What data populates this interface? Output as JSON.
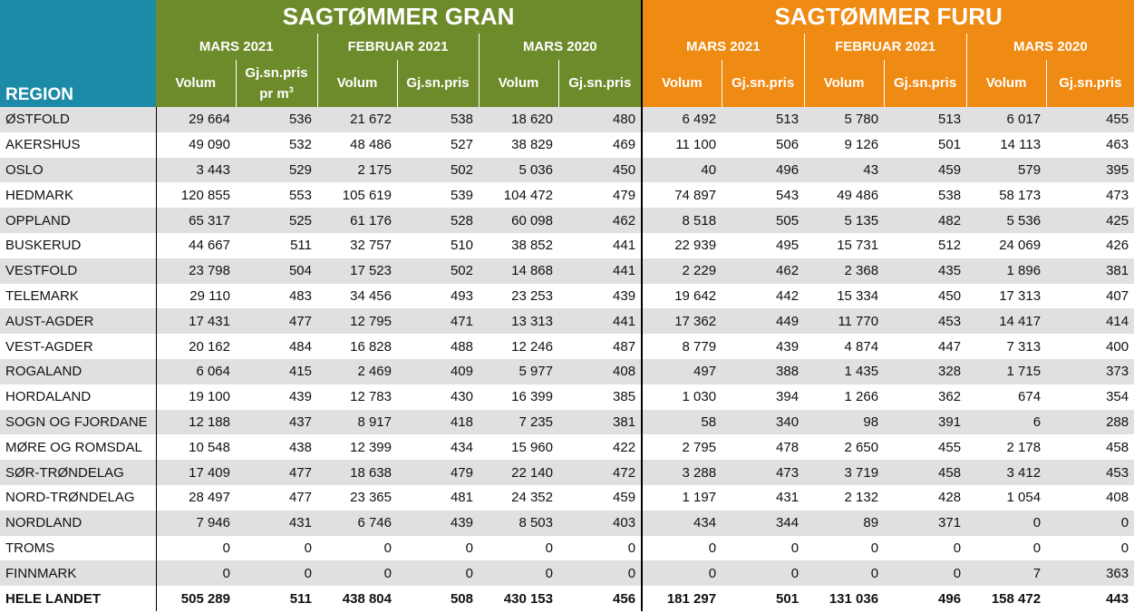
{
  "header": {
    "region_label": "REGION",
    "gran_title": "SAGTØMMER GRAN",
    "furu_title": "SAGTØMMER FURU",
    "periods": [
      "MARS 2021",
      "FEBRUAR 2021",
      "MARS 2020"
    ],
    "col_volum": "Volum",
    "col_pris": "Gj.sn.pris",
    "col_pris_first_line1": "Gj.sn.pris",
    "col_pris_first_line2": "pr m",
    "col_pris_first_sup": "3"
  },
  "rows": [
    {
      "region": "ØSTFOLD",
      "gran": [
        "29 664",
        "536",
        "21 672",
        "538",
        "18 620",
        "480"
      ],
      "furu": [
        "6 492",
        "513",
        "5 780",
        "513",
        "6 017",
        "455"
      ]
    },
    {
      "region": "AKERSHUS",
      "gran": [
        "49 090",
        "532",
        "48 486",
        "527",
        "38 829",
        "469"
      ],
      "furu": [
        "11 100",
        "506",
        "9 126",
        "501",
        "14 113",
        "463"
      ]
    },
    {
      "region": "OSLO",
      "gran": [
        "3 443",
        "529",
        "2 175",
        "502",
        "5 036",
        "450"
      ],
      "furu": [
        "40",
        "496",
        "43",
        "459",
        "579",
        "395"
      ]
    },
    {
      "region": "HEDMARK",
      "gran": [
        "120 855",
        "553",
        "105 619",
        "539",
        "104 472",
        "479"
      ],
      "furu": [
        "74 897",
        "543",
        "49 486",
        "538",
        "58 173",
        "473"
      ]
    },
    {
      "region": "OPPLAND",
      "gran": [
        "65 317",
        "525",
        "61 176",
        "528",
        "60 098",
        "462"
      ],
      "furu": [
        "8 518",
        "505",
        "5 135",
        "482",
        "5 536",
        "425"
      ]
    },
    {
      "region": "BUSKERUD",
      "gran": [
        "44 667",
        "511",
        "32 757",
        "510",
        "38 852",
        "441"
      ],
      "furu": [
        "22 939",
        "495",
        "15 731",
        "512",
        "24 069",
        "426"
      ]
    },
    {
      "region": "VESTFOLD",
      "gran": [
        "23 798",
        "504",
        "17 523",
        "502",
        "14 868",
        "441"
      ],
      "furu": [
        "2 229",
        "462",
        "2 368",
        "435",
        "1 896",
        "381"
      ]
    },
    {
      "region": "TELEMARK",
      "gran": [
        "29 110",
        "483",
        "34 456",
        "493",
        "23 253",
        "439"
      ],
      "furu": [
        "19 642",
        "442",
        "15 334",
        "450",
        "17 313",
        "407"
      ]
    },
    {
      "region": "AUST-AGDER",
      "gran": [
        "17 431",
        "477",
        "12 795",
        "471",
        "13 313",
        "441"
      ],
      "furu": [
        "17 362",
        "449",
        "11 770",
        "453",
        "14 417",
        "414"
      ]
    },
    {
      "region": "VEST-AGDER",
      "gran": [
        "20 162",
        "484",
        "16 828",
        "488",
        "12 246",
        "487"
      ],
      "furu": [
        "8 779",
        "439",
        "4 874",
        "447",
        "7 313",
        "400"
      ]
    },
    {
      "region": "ROGALAND",
      "gran": [
        "6 064",
        "415",
        "2 469",
        "409",
        "5 977",
        "408"
      ],
      "furu": [
        "497",
        "388",
        "1 435",
        "328",
        "1 715",
        "373"
      ]
    },
    {
      "region": "HORDALAND",
      "gran": [
        "19 100",
        "439",
        "12 783",
        "430",
        "16 399",
        "385"
      ],
      "furu": [
        "1 030",
        "394",
        "1 266",
        "362",
        "674",
        "354"
      ]
    },
    {
      "region": "SOGN OG FJORDANE",
      "gran": [
        "12 188",
        "437",
        "8 917",
        "418",
        "7 235",
        "381"
      ],
      "furu": [
        "58",
        "340",
        "98",
        "391",
        "6",
        "288"
      ]
    },
    {
      "region": "MØRE OG ROMSDAL",
      "gran": [
        "10 548",
        "438",
        "12 399",
        "434",
        "15 960",
        "422"
      ],
      "furu": [
        "2 795",
        "478",
        "2 650",
        "455",
        "2 178",
        "458"
      ]
    },
    {
      "region": "SØR-TRØNDELAG",
      "gran": [
        "17 409",
        "477",
        "18 638",
        "479",
        "22 140",
        "472"
      ],
      "furu": [
        "3 288",
        "473",
        "3 719",
        "458",
        "3 412",
        "453"
      ]
    },
    {
      "region": "NORD-TRØNDELAG",
      "gran": [
        "28 497",
        "477",
        "23 365",
        "481",
        "24 352",
        "459"
      ],
      "furu": [
        "1 197",
        "431",
        "2 132",
        "428",
        "1 054",
        "408"
      ]
    },
    {
      "region": "NORDLAND",
      "gran": [
        "7 946",
        "431",
        "6 746",
        "439",
        "8 503",
        "403"
      ],
      "furu": [
        "434",
        "344",
        "89",
        "371",
        "0",
        "0"
      ]
    },
    {
      "region": "TROMS",
      "gran": [
        "0",
        "0",
        "0",
        "0",
        "0",
        "0"
      ],
      "furu": [
        "0",
        "0",
        "0",
        "0",
        "0",
        "0"
      ]
    },
    {
      "region": "FINNMARK",
      "gran": [
        "0",
        "0",
        "0",
        "0",
        "0",
        "0"
      ],
      "furu": [
        "0",
        "0",
        "0",
        "0",
        "7",
        "363"
      ]
    }
  ],
  "total": {
    "region": "HELE LANDET",
    "gran": [
      "505 289",
      "511",
      "438 804",
      "508",
      "430 153",
      "456"
    ],
    "furu": [
      "181 297",
      "501",
      "131 036",
      "496",
      "158 472",
      "443"
    ]
  },
  "colors": {
    "gran": "#6e8b2b",
    "furu": "#ef8a12",
    "region": "#1c8ba8",
    "stripe": "#e0e0e0"
  }
}
